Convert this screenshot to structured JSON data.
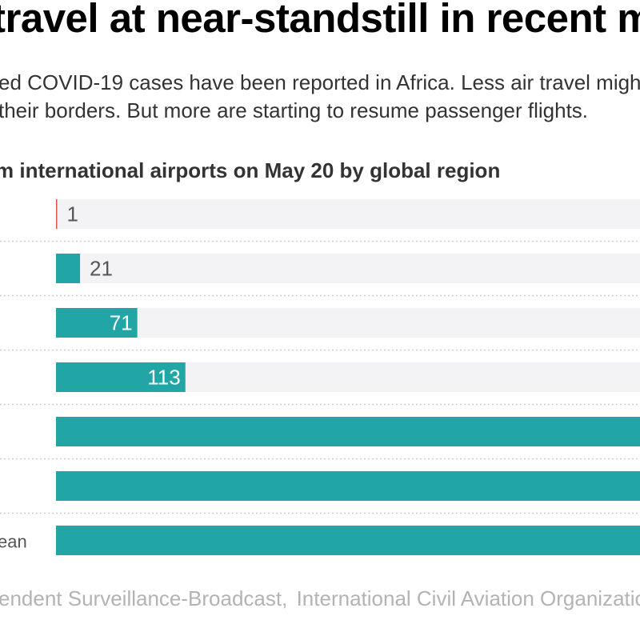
{
  "title": "travel at near-standstill in recent m",
  "subtitle_lines": [
    "ed COVID-19 cases have been reported in Africa. Less air travel migh",
    "their borders. But more are starting to resume passenger flights."
  ],
  "colors": {
    "bar": "#21a5a5",
    "smallest_bar": "#d9534f",
    "track": "#f3f3f5",
    "separator": "#cccccc",
    "label_dark": "#555555",
    "label_light": "#ffffff"
  },
  "chart_data": {
    "type": "bar",
    "orientation": "horizontal",
    "title": "m international airports on May 20 by global region",
    "categories": [
      "",
      "",
      "",
      "",
      "",
      "",
      "ean"
    ],
    "values": [
      1,
      21,
      71,
      113,
      null,
      null,
      null
    ],
    "data_labels": [
      "1",
      "21",
      "71",
      "113",
      "",
      "",
      ""
    ],
    "xlim": [
      0,
      510
    ],
    "grid": false
  },
  "source": {
    "part1": "endent Surveillance-Broadcast",
    "separator": ",",
    "part2": "International Civil Aviation Organization"
  }
}
